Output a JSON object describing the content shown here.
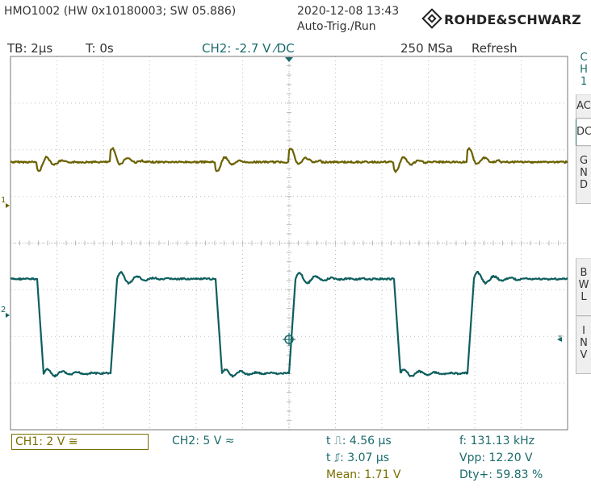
{
  "header": {
    "device": "HMO1002 (HW 0x10180003; SW 05.886)",
    "datetime": "2020-12-08 13:43",
    "trigger_mode": "Auto-Trig./Run",
    "brand": "ROHDE&SCHWARZ"
  },
  "status_bar": {
    "timebase": "TB: 2µs",
    "trigger_time": "T: 0s",
    "trigger_source": "CH2: -2.7 V ⁄DC",
    "sample_rate": "250 MSa",
    "refresh": "Refresh"
  },
  "side_menu": {
    "channel_letters": [
      "C",
      "H",
      "1"
    ],
    "coupling_ac": "AC",
    "coupling_dc": "DC",
    "gnd_letters": [
      "G",
      "N",
      "D"
    ],
    "bwl_letters": [
      "B",
      "W",
      "L"
    ],
    "inv_letters": [
      "I",
      "N",
      "V"
    ]
  },
  "markers": {
    "ch1": "1",
    "ch2": "2",
    "trigger": "T"
  },
  "footer": {
    "ch1_scale": "CH1: 2 V ≅",
    "ch2_scale": "CH2: 5 V ≈",
    "pulse_width_pos": "t ⎍: 4.56 µs",
    "pulse_width_neg": "t ⎎: 3.07 µs",
    "mean": "Mean: 1.71 V",
    "frequency": "f: 131.13 kHz",
    "vpp": "Vpp: 12.20 V",
    "duty": "Dty+: 59.83 %"
  },
  "colors": {
    "ch1_trace": "#6b6100",
    "ch2_trace": "#0e5e5e",
    "grid": "#c0c0c0",
    "background": "#ffffff"
  }
}
